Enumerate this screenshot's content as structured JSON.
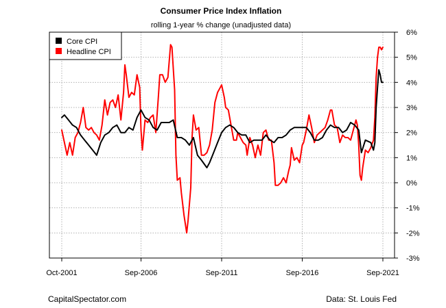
{
  "chart_data": {
    "type": "line",
    "title": "Consumer Price Index Inflation",
    "subtitle": "rolling 1-year % change (unadjusted data)",
    "x_range": [
      "2001-10",
      "2021-09"
    ],
    "x_ticks": [
      "Oct-2001",
      "Sep-2006",
      "Sep-2011",
      "Sep-2016",
      "Sep-2021"
    ],
    "ylim": [
      -3,
      6
    ],
    "y_ticks": [
      6,
      5,
      4,
      3,
      2,
      1,
      0,
      -1,
      -2,
      -3
    ],
    "y_tick_labels": [
      "6%",
      "5%",
      "4%",
      "3%",
      "2%",
      "1%",
      "0%",
      "-1%",
      "-2%",
      "-3%"
    ],
    "y_axis_side": "right",
    "grid": true,
    "legend_position": "top-left",
    "series": [
      {
        "name": "Core CPI",
        "color": "#000000",
        "points": [
          [
            "2001-10",
            2.6
          ],
          [
            "2001-12",
            2.7
          ],
          [
            "2002-03",
            2.5
          ],
          [
            "2002-06",
            2.3
          ],
          [
            "2002-09",
            2.2
          ],
          [
            "2002-12",
            1.9
          ],
          [
            "2003-03",
            1.7
          ],
          [
            "2003-06",
            1.5
          ],
          [
            "2003-09",
            1.3
          ],
          [
            "2003-12",
            1.1
          ],
          [
            "2004-03",
            1.6
          ],
          [
            "2004-06",
            1.9
          ],
          [
            "2004-09",
            2.0
          ],
          [
            "2004-12",
            2.2
          ],
          [
            "2005-03",
            2.3
          ],
          [
            "2005-06",
            2.0
          ],
          [
            "2005-09",
            2.0
          ],
          [
            "2005-12",
            2.2
          ],
          [
            "2006-03",
            2.1
          ],
          [
            "2006-06",
            2.6
          ],
          [
            "2006-09",
            2.9
          ],
          [
            "2006-12",
            2.6
          ],
          [
            "2007-03",
            2.5
          ],
          [
            "2007-06",
            2.2
          ],
          [
            "2007-09",
            2.1
          ],
          [
            "2007-12",
            2.4
          ],
          [
            "2008-03",
            2.4
          ],
          [
            "2008-06",
            2.4
          ],
          [
            "2008-09",
            2.5
          ],
          [
            "2008-12",
            1.8
          ],
          [
            "2009-03",
            1.8
          ],
          [
            "2009-06",
            1.7
          ],
          [
            "2009-09",
            1.5
          ],
          [
            "2009-12",
            1.8
          ],
          [
            "2010-03",
            1.1
          ],
          [
            "2010-06",
            0.9
          ],
          [
            "2010-10",
            0.6
          ],
          [
            "2010-12",
            0.8
          ],
          [
            "2011-03",
            1.2
          ],
          [
            "2011-06",
            1.6
          ],
          [
            "2011-09",
            2.0
          ],
          [
            "2011-12",
            2.2
          ],
          [
            "2012-03",
            2.3
          ],
          [
            "2012-06",
            2.2
          ],
          [
            "2012-09",
            2.0
          ],
          [
            "2012-12",
            1.9
          ],
          [
            "2013-03",
            1.9
          ],
          [
            "2013-06",
            1.6
          ],
          [
            "2013-09",
            1.7
          ],
          [
            "2013-12",
            1.7
          ],
          [
            "2014-03",
            1.7
          ],
          [
            "2014-06",
            1.9
          ],
          [
            "2014-09",
            1.7
          ],
          [
            "2014-12",
            1.6
          ],
          [
            "2015-03",
            1.8
          ],
          [
            "2015-06",
            1.8
          ],
          [
            "2015-09",
            1.9
          ],
          [
            "2015-12",
            2.1
          ],
          [
            "2016-03",
            2.2
          ],
          [
            "2016-06",
            2.2
          ],
          [
            "2016-09",
            2.2
          ],
          [
            "2016-12",
            2.2
          ],
          [
            "2017-03",
            2.0
          ],
          [
            "2017-06",
            1.7
          ],
          [
            "2017-09",
            1.7
          ],
          [
            "2017-12",
            1.8
          ],
          [
            "2018-03",
            2.1
          ],
          [
            "2018-06",
            2.3
          ],
          [
            "2018-09",
            2.2
          ],
          [
            "2018-12",
            2.2
          ],
          [
            "2019-03",
            2.0
          ],
          [
            "2019-06",
            2.1
          ],
          [
            "2019-09",
            2.4
          ],
          [
            "2019-12",
            2.3
          ],
          [
            "2020-03",
            2.1
          ],
          [
            "2020-05",
            1.2
          ],
          [
            "2020-08",
            1.7
          ],
          [
            "2020-12",
            1.6
          ],
          [
            "2021-02",
            1.3
          ],
          [
            "2021-03",
            1.6
          ],
          [
            "2021-04",
            3.0
          ],
          [
            "2021-05",
            3.8
          ],
          [
            "2021-06",
            4.5
          ],
          [
            "2021-07",
            4.3
          ],
          [
            "2021-08",
            4.0
          ],
          [
            "2021-09",
            4.0
          ]
        ]
      },
      {
        "name": "Headline CPI",
        "color": "#ff0000",
        "points": [
          [
            "2001-10",
            2.1
          ],
          [
            "2001-12",
            1.6
          ],
          [
            "2002-02",
            1.1
          ],
          [
            "2002-04",
            1.6
          ],
          [
            "2002-06",
            1.1
          ],
          [
            "2002-08",
            1.8
          ],
          [
            "2002-10",
            2.0
          ],
          [
            "2002-12",
            2.4
          ],
          [
            "2003-02",
            3.0
          ],
          [
            "2003-04",
            2.2
          ],
          [
            "2003-06",
            2.1
          ],
          [
            "2003-08",
            2.2
          ],
          [
            "2003-10",
            2.0
          ],
          [
            "2003-12",
            1.9
          ],
          [
            "2004-02",
            1.7
          ],
          [
            "2004-04",
            2.3
          ],
          [
            "2004-06",
            3.3
          ],
          [
            "2004-08",
            2.7
          ],
          [
            "2004-10",
            3.2
          ],
          [
            "2004-12",
            3.3
          ],
          [
            "2005-02",
            3.0
          ],
          [
            "2005-04",
            3.5
          ],
          [
            "2005-06",
            2.5
          ],
          [
            "2005-08",
            3.6
          ],
          [
            "2005-09",
            4.7
          ],
          [
            "2005-10",
            4.3
          ],
          [
            "2005-12",
            3.4
          ],
          [
            "2006-02",
            3.6
          ],
          [
            "2006-04",
            3.5
          ],
          [
            "2006-06",
            4.3
          ],
          [
            "2006-08",
            3.8
          ],
          [
            "2006-09",
            2.1
          ],
          [
            "2006-10",
            1.3
          ],
          [
            "2006-12",
            2.5
          ],
          [
            "2007-02",
            2.4
          ],
          [
            "2007-04",
            2.6
          ],
          [
            "2007-06",
            2.7
          ],
          [
            "2007-08",
            2.0
          ],
          [
            "2007-10",
            3.5
          ],
          [
            "2007-11",
            4.3
          ],
          [
            "2008-01",
            4.3
          ],
          [
            "2008-03",
            4.0
          ],
          [
            "2008-05",
            4.2
          ],
          [
            "2008-07",
            5.5
          ],
          [
            "2008-08",
            5.4
          ],
          [
            "2008-10",
            3.7
          ],
          [
            "2008-11",
            1.1
          ],
          [
            "2008-12",
            0.1
          ],
          [
            "2009-02",
            0.2
          ],
          [
            "2009-03",
            -0.4
          ],
          [
            "2009-05",
            -1.3
          ],
          [
            "2009-07",
            -2.0
          ],
          [
            "2009-08",
            -1.5
          ],
          [
            "2009-10",
            -0.2
          ],
          [
            "2009-11",
            1.8
          ],
          [
            "2009-12",
            2.7
          ],
          [
            "2010-02",
            2.1
          ],
          [
            "2010-04",
            2.2
          ],
          [
            "2010-06",
            1.1
          ],
          [
            "2010-08",
            1.1
          ],
          [
            "2010-10",
            1.2
          ],
          [
            "2010-12",
            1.5
          ],
          [
            "2011-02",
            2.1
          ],
          [
            "2011-04",
            3.2
          ],
          [
            "2011-06",
            3.6
          ],
          [
            "2011-08",
            3.8
          ],
          [
            "2011-09",
            3.9
          ],
          [
            "2011-11",
            3.4
          ],
          [
            "2011-12",
            3.0
          ],
          [
            "2012-02",
            2.9
          ],
          [
            "2012-04",
            2.3
          ],
          [
            "2012-06",
            1.7
          ],
          [
            "2012-08",
            1.7
          ],
          [
            "2012-09",
            2.0
          ],
          [
            "2012-11",
            1.8
          ],
          [
            "2013-01",
            1.6
          ],
          [
            "2013-03",
            1.5
          ],
          [
            "2013-04",
            1.1
          ],
          [
            "2013-06",
            1.8
          ],
          [
            "2013-08",
            1.5
          ],
          [
            "2013-10",
            1.0
          ],
          [
            "2013-12",
            1.5
          ],
          [
            "2014-02",
            1.1
          ],
          [
            "2014-04",
            2.0
          ],
          [
            "2014-06",
            2.1
          ],
          [
            "2014-08",
            1.7
          ],
          [
            "2014-10",
            1.7
          ],
          [
            "2014-12",
            0.8
          ],
          [
            "2015-01",
            -0.1
          ],
          [
            "2015-03",
            -0.1
          ],
          [
            "2015-05",
            0.0
          ],
          [
            "2015-07",
            0.2
          ],
          [
            "2015-09",
            0.0
          ],
          [
            "2015-11",
            0.5
          ],
          [
            "2015-12",
            0.7
          ],
          [
            "2016-01",
            1.4
          ],
          [
            "2016-03",
            0.9
          ],
          [
            "2016-05",
            1.0
          ],
          [
            "2016-07",
            0.8
          ],
          [
            "2016-09",
            1.5
          ],
          [
            "2016-10",
            1.6
          ],
          [
            "2016-12",
            2.1
          ],
          [
            "2017-02",
            2.7
          ],
          [
            "2017-04",
            2.2
          ],
          [
            "2017-06",
            1.6
          ],
          [
            "2017-08",
            1.9
          ],
          [
            "2017-10",
            2.0
          ],
          [
            "2017-12",
            2.1
          ],
          [
            "2018-02",
            2.2
          ],
          [
            "2018-04",
            2.5
          ],
          [
            "2018-06",
            2.9
          ],
          [
            "2018-07",
            2.9
          ],
          [
            "2018-09",
            2.3
          ],
          [
            "2018-11",
            2.2
          ],
          [
            "2018-12",
            1.9
          ],
          [
            "2019-01",
            1.6
          ],
          [
            "2019-03",
            1.9
          ],
          [
            "2019-05",
            1.8
          ],
          [
            "2019-07",
            1.8
          ],
          [
            "2019-09",
            1.7
          ],
          [
            "2019-11",
            2.1
          ],
          [
            "2019-12",
            2.3
          ],
          [
            "2020-01",
            2.5
          ],
          [
            "2020-02",
            2.3
          ],
          [
            "2020-03",
            1.5
          ],
          [
            "2020-04",
            0.3
          ],
          [
            "2020-05",
            0.1
          ],
          [
            "2020-06",
            0.6
          ],
          [
            "2020-08",
            1.3
          ],
          [
            "2020-10",
            1.2
          ],
          [
            "2020-12",
            1.4
          ],
          [
            "2021-02",
            1.7
          ],
          [
            "2021-03",
            2.6
          ],
          [
            "2021-04",
            4.2
          ],
          [
            "2021-05",
            5.0
          ],
          [
            "2021-06",
            5.4
          ],
          [
            "2021-07",
            5.4
          ],
          [
            "2021-08",
            5.3
          ],
          [
            "2021-09",
            5.4
          ]
        ]
      }
    ]
  },
  "footer": {
    "left": "CapitalSpectator.com",
    "right": "Data: St. Louis Fed"
  }
}
